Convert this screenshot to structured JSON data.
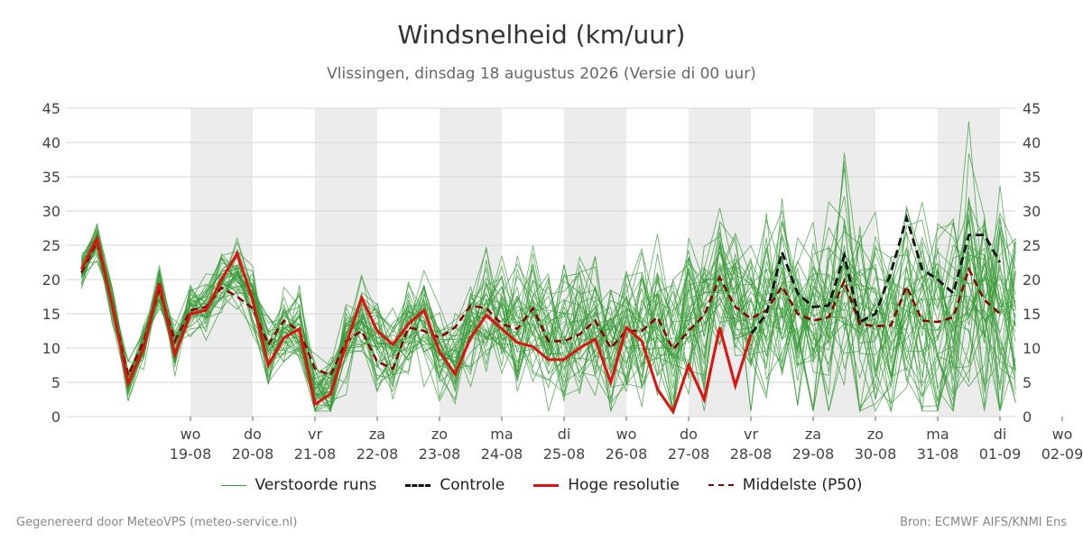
{
  "title": "Windsnelheid (km/uur)",
  "subtitle": "Vlissingen, dinsdag 18 augustus 2026 (Versie di 00 uur)",
  "footer_left": "Gegenereerd door MeteoVPS (meteo-service.nl)",
  "footer_right": "Bron: ECMWF AIFS/KNMI Ens",
  "colors": {
    "ensemble": "#3a9c3a",
    "controle": "#111111",
    "hoge_resolutie": "#e0110f",
    "p50": "#8b0000",
    "shade": "#ececec",
    "grid": "#d6d6d6"
  },
  "legend": [
    {
      "key": "ensemble",
      "label": "Verstoorde runs",
      "style": "thin"
    },
    {
      "key": "controle",
      "label": "Controle",
      "style": "dashed"
    },
    {
      "key": "hoge_resolutie",
      "label": "Hoge resolutie",
      "style": "solid"
    },
    {
      "key": "p50",
      "label": "Middelste (P50)",
      "style": "dashed"
    }
  ],
  "chart_data": {
    "type": "line",
    "ylim": [
      0,
      45
    ],
    "yticks": [
      0,
      5,
      10,
      15,
      20,
      25,
      30,
      35,
      40,
      45
    ],
    "x_unit": "days since 18-08 00u",
    "xlim": [
      -0.75,
      14.0
    ],
    "x_ticks": [
      {
        "x": 1,
        "day": "wo",
        "date": "19-08"
      },
      {
        "x": 2,
        "day": "do",
        "date": "20-08"
      },
      {
        "x": 3,
        "day": "vr",
        "date": "21-08"
      },
      {
        "x": 4,
        "day": "za",
        "date": "22-08"
      },
      {
        "x": 5,
        "day": "zo",
        "date": "23-08"
      },
      {
        "x": 6,
        "day": "ma",
        "date": "24-08"
      },
      {
        "x": 7,
        "day": "di",
        "date": "25-08"
      },
      {
        "x": 8,
        "day": "wo",
        "date": "26-08"
      },
      {
        "x": 9,
        "day": "do",
        "date": "27-08"
      },
      {
        "x": 10,
        "day": "vr",
        "date": "28-08"
      },
      {
        "x": 11,
        "day": "za",
        "date": "29-08"
      },
      {
        "x": 12,
        "day": "zo",
        "date": "30-08"
      },
      {
        "x": 13,
        "day": "ma",
        "date": "31-08"
      },
      {
        "x": 14,
        "day": "di",
        "date": "01-09"
      },
      {
        "x": 15,
        "day": "wo",
        "date": "02-09"
      }
    ],
    "shaded_bands": [
      [
        1,
        2
      ],
      [
        3,
        4
      ],
      [
        5,
        6
      ],
      [
        7,
        8
      ],
      [
        9,
        10
      ],
      [
        11,
        12
      ],
      [
        13,
        14
      ]
    ],
    "series": [
      {
        "name": "Hoge resolutie",
        "key": "hoge_resolutie",
        "x": [
          -0.75,
          -0.5,
          -0.25,
          0.0,
          0.25,
          0.5,
          0.75,
          1.0,
          1.25,
          1.5,
          1.75,
          2.0,
          2.25,
          2.5,
          2.75,
          3.0,
          3.25,
          3.5,
          3.75,
          4.0,
          4.25,
          4.5,
          4.75,
          5.0,
          5.25,
          5.5,
          5.75,
          6.0,
          6.25,
          6.5,
          6.75,
          7.0,
          7.25,
          7.5,
          7.75,
          8.0,
          8.25,
          8.5,
          8.75,
          9.0,
          9.25,
          9.5,
          9.75,
          10.0
        ],
        "values": [
          21.5,
          26,
          16,
          4.8,
          10,
          19.5,
          9,
          15,
          15.5,
          20,
          23.8,
          17,
          7.5,
          11.5,
          12.8,
          1.8,
          3.3,
          10.5,
          17.3,
          12.5,
          10.5,
          13.5,
          15.5,
          9.5,
          6.2,
          11.5,
          14.8,
          12.8,
          10.8,
          10.2,
          8.3,
          8.3,
          10,
          11.3,
          5,
          13,
          11,
          4,
          0.7,
          7.5,
          2.5,
          13,
          4.5,
          12
        ]
      },
      {
        "name": "Controle",
        "key": "controle",
        "x": [
          8.5,
          8.75,
          9.0,
          9.25,
          9.5,
          9.75,
          10.0,
          10.25,
          10.5,
          10.75,
          11.0,
          11.25,
          11.5,
          11.75,
          12.0,
          12.25,
          12.5,
          12.75,
          13.0,
          13.25,
          13.5,
          13.75,
          14.0
        ],
        "values": [
          4,
          0.7,
          7.5,
          2.5,
          13,
          4.5,
          12,
          15,
          24,
          18,
          16,
          16.2,
          23.5,
          13.8,
          15,
          21,
          29,
          21.5,
          20,
          18,
          26.5,
          26.5,
          22.5
        ]
      },
      {
        "name": "Middelste (P50)",
        "key": "p50",
        "x": [
          -0.75,
          -0.5,
          -0.25,
          0.0,
          0.25,
          0.5,
          0.75,
          1.0,
          1.25,
          1.5,
          1.75,
          2.0,
          2.25,
          2.5,
          2.75,
          3.0,
          3.25,
          3.5,
          3.75,
          4.0,
          4.25,
          4.5,
          4.75,
          5.0,
          5.25,
          5.5,
          5.75,
          6.0,
          6.25,
          6.5,
          6.75,
          7.0,
          7.25,
          7.5,
          7.75,
          8.0,
          8.25,
          8.5,
          8.75,
          9.0,
          9.25,
          9.5,
          9.75,
          10.0,
          10.25,
          10.5,
          10.75,
          11.0,
          11.25,
          11.5,
          11.75,
          12.0,
          12.25,
          12.5,
          12.75,
          13.0,
          13.25,
          13.5,
          13.75,
          14.0
        ],
        "values": [
          21,
          25.5,
          16,
          6,
          11,
          18.5,
          11,
          15.5,
          16,
          18.8,
          17.5,
          15.8,
          10.5,
          14,
          12.5,
          7,
          6,
          11,
          12.5,
          8,
          7,
          13,
          12.5,
          11.5,
          13,
          16.2,
          15.8,
          13.5,
          12.8,
          15.8,
          11,
          11,
          12,
          14,
          10,
          12.5,
          12.5,
          14.5,
          9.8,
          12.5,
          14.8,
          20.3,
          16,
          14.3,
          15.5,
          19,
          15,
          14,
          14.5,
          19.8,
          13.5,
          13.2,
          13.3,
          19,
          14,
          13.8,
          14.5,
          21.5,
          17,
          15
        ]
      }
    ]
  }
}
